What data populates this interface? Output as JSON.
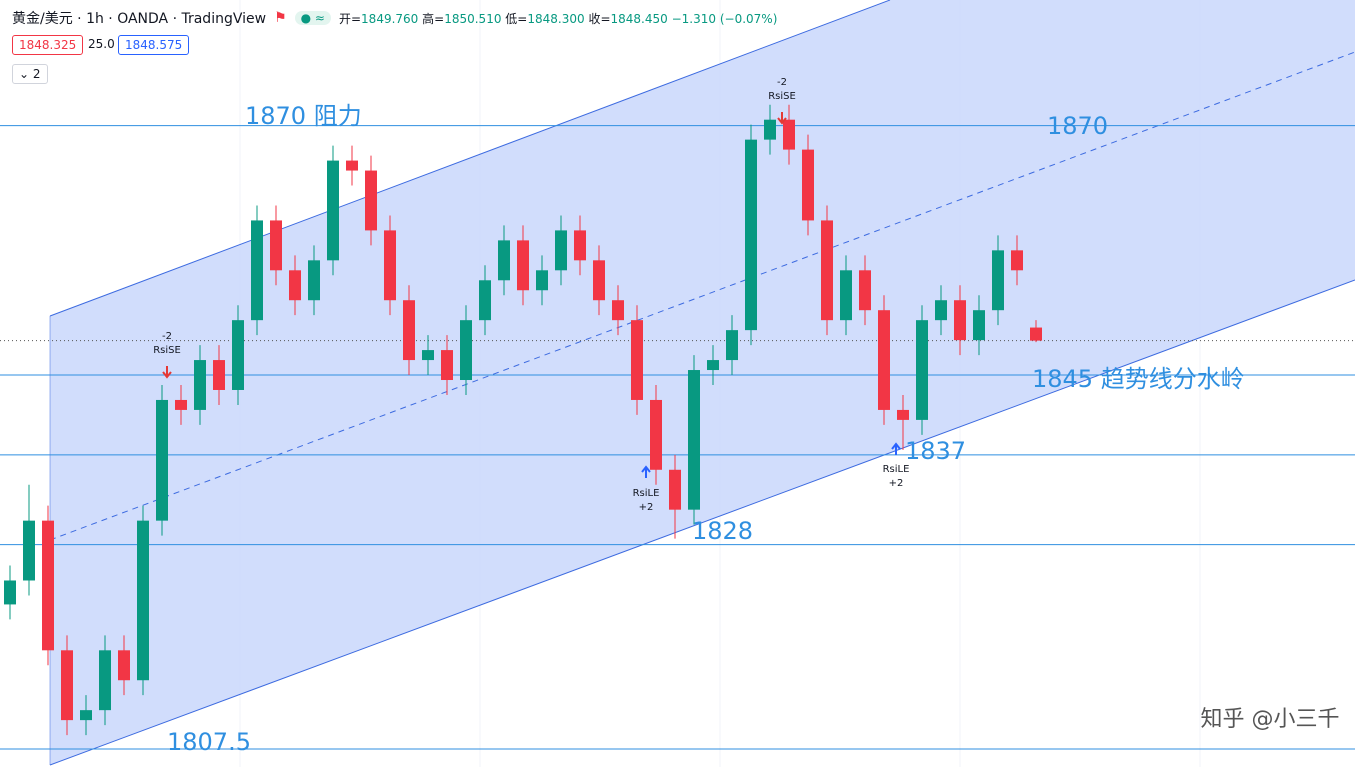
{
  "chart_data": {
    "type": "candlestick",
    "title": "黄金/美元 · 1h · OANDA · TradingView",
    "ohlc_labels": [
      "开=",
      "高=",
      "低=",
      "收="
    ],
    "ohlc_values": [
      "1849.760",
      "1850.510",
      "1848.300",
      "1848.450"
    ],
    "change": "−1.310 (−0.07%)",
    "bid": "1848.325",
    "spread": "25.0",
    "ask": "1848.575",
    "indicator_count": "2",
    "up_color": "#089981",
    "down_color": "#f23645",
    "level_color": "#2f8fe0",
    "ylim": [
      1805.7,
      1882.6
    ],
    "levels": [
      1870,
      1845,
      1837,
      1828,
      1807.5
    ],
    "annotations": [
      "1870 阻力",
      "1870",
      "1845 趋势线分水岭",
      "1837",
      "1828",
      "1807.5"
    ],
    "signals": [
      [
        "-2",
        "RsiSE"
      ],
      [
        "RsiLE",
        "+2"
      ],
      [
        "-2",
        "RsiSE"
      ],
      [
        "RsiLE",
        "+2"
      ]
    ],
    "open": [
      1822.0,
      1824.4,
      1830.4,
      1817.4,
      1810.4,
      1811.4,
      1817.4,
      1814.4,
      1830.4,
      1842.5,
      1841.5,
      1846.5,
      1843.5,
      1850.5,
      1860.5,
      1855.5,
      1852.5,
      1856.5,
      1866.5,
      1865.5,
      1859.5,
      1852.5,
      1846.5,
      1847.5,
      1844.5,
      1850.5,
      1854.5,
      1858.5,
      1853.5,
      1855.5,
      1859.5,
      1856.5,
      1852.5,
      1850.5,
      1842.5,
      1835.5,
      1831.5,
      1845.5,
      1846.5,
      1849.5,
      1868.6,
      1870.6,
      1867.6,
      1860.5,
      1850.5,
      1855.5,
      1851.5,
      1841.5,
      1840.5,
      1850.5,
      1852.5,
      1848.5,
      1851.5,
      1857.5,
      1849.76
    ],
    "high": [
      1825.9,
      1834.0,
      1831.9,
      1818.9,
      1812.9,
      1818.9,
      1818.9,
      1831.9,
      1844.0,
      1844.0,
      1848.0,
      1848.0,
      1852.0,
      1862.0,
      1862.0,
      1857.0,
      1858.0,
      1868.0,
      1868.0,
      1867.0,
      1861.0,
      1854.0,
      1849.0,
      1849.0,
      1852.0,
      1856.0,
      1860.0,
      1860.0,
      1857.0,
      1861.0,
      1861.0,
      1858.0,
      1854.0,
      1852.0,
      1844.0,
      1837.0,
      1847.0,
      1848.0,
      1851.0,
      1870.1,
      1872.1,
      1872.1,
      1869.1,
      1862.0,
      1857.0,
      1857.0,
      1853.0,
      1843.0,
      1852.0,
      1854.0,
      1854.0,
      1853.0,
      1859.0,
      1859.0,
      1850.51
    ],
    "low": [
      1820.5,
      1822.9,
      1815.9,
      1808.9,
      1808.9,
      1809.9,
      1812.9,
      1812.9,
      1828.9,
      1840.0,
      1840.0,
      1842.0,
      1842.0,
      1849.0,
      1854.0,
      1851.0,
      1851.0,
      1855.0,
      1864.0,
      1858.0,
      1851.0,
      1845.0,
      1845.0,
      1843.0,
      1843.0,
      1849.0,
      1853.0,
      1852.0,
      1852.0,
      1854.0,
      1855.0,
      1851.0,
      1849.0,
      1841.0,
      1834.0,
      1828.6,
      1830.0,
      1844.0,
      1845.0,
      1848.0,
      1867.1,
      1866.1,
      1859.0,
      1849.0,
      1849.0,
      1850.0,
      1840.0,
      1837.5,
      1839.0,
      1849.0,
      1847.0,
      1847.0,
      1850.0,
      1854.0,
      1848.3
    ],
    "close": [
      1824.4,
      1830.4,
      1817.4,
      1810.4,
      1811.4,
      1817.4,
      1814.4,
      1830.4,
      1842.5,
      1841.5,
      1846.5,
      1843.5,
      1850.5,
      1860.5,
      1855.5,
      1852.5,
      1856.5,
      1866.5,
      1865.5,
      1859.5,
      1852.5,
      1846.5,
      1847.5,
      1844.5,
      1850.5,
      1854.5,
      1858.5,
      1853.5,
      1855.5,
      1859.5,
      1856.5,
      1852.5,
      1850.5,
      1842.5,
      1835.5,
      1831.5,
      1845.5,
      1846.5,
      1849.5,
      1868.6,
      1870.6,
      1867.6,
      1860.5,
      1850.5,
      1855.5,
      1851.5,
      1841.5,
      1840.5,
      1850.5,
      1852.5,
      1848.5,
      1851.5,
      1857.5,
      1855.5,
      1848.45
    ]
  },
  "watermark": "知乎 @小三千"
}
